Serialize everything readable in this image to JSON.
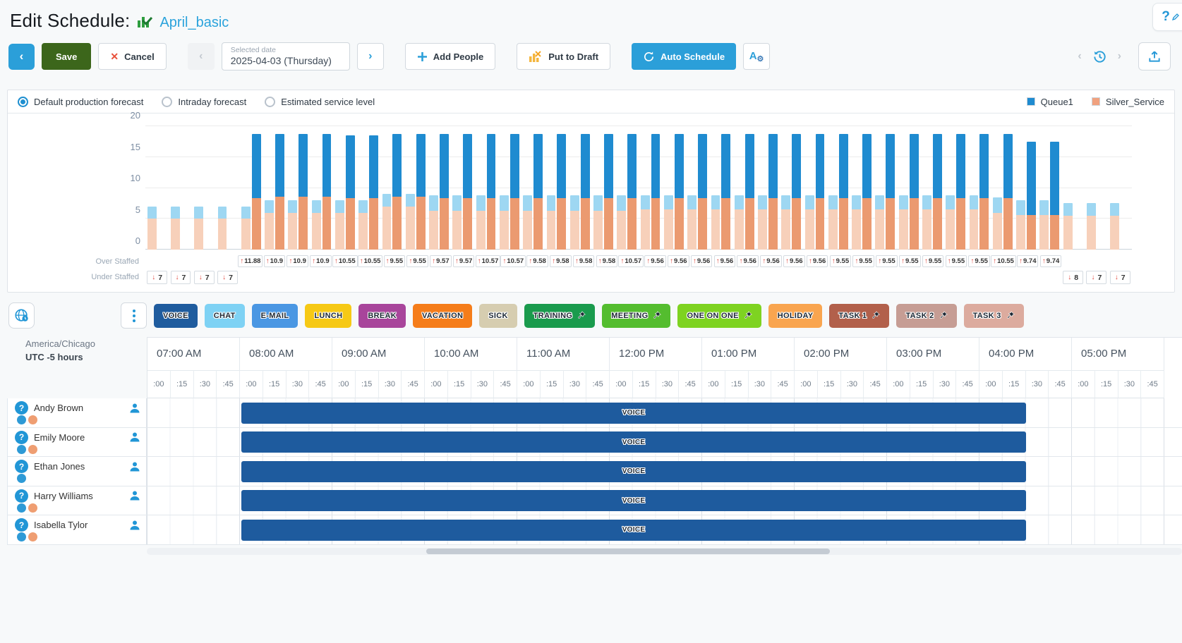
{
  "title": {
    "label": "Edit Schedule:",
    "schedule_name": "April_basic"
  },
  "help": {
    "icon_label": "?"
  },
  "toolbar": {
    "save_label": "Save",
    "cancel_label": "Cancel",
    "selected_date_label": "Selected date",
    "selected_date_value": "2025-04-03 (Thursday)",
    "add_people_label": "Add People",
    "put_to_draft_label": "Put to Draft",
    "auto_schedule_label": "Auto Schedule"
  },
  "chart": {
    "radios": [
      {
        "label": "Default production forecast",
        "selected": true
      },
      {
        "label": "Intraday forecast",
        "selected": false
      },
      {
        "label": "Estimated service level",
        "selected": false
      }
    ],
    "legend": [
      {
        "label": "Queue1",
        "color": "#1f8bd0"
      },
      {
        "label": "Silver_Service",
        "color": "#f0a17f"
      }
    ],
    "over_staffed_label": "Over Staffed",
    "under_staffed_label": "Under Staffed"
  },
  "chart_data": {
    "type": "bar",
    "title": "Default production forecast",
    "ylim": [
      0,
      20
    ],
    "yticks": [
      0,
      5,
      10,
      15,
      20
    ],
    "grid": "horizontal",
    "legend_position": "top-right",
    "series_names": [
      "Queue1",
      "Silver_Service"
    ],
    "interval_fields": [
      "light_salmon",
      "light_total",
      "dark_salmon",
      "dark_total",
      "over_staffed",
      "under_staffed"
    ],
    "intervals": [
      [
        5,
        7,
        null,
        null,
        null,
        7
      ],
      [
        5,
        7,
        null,
        null,
        null,
        7
      ],
      [
        5,
        7,
        null,
        null,
        null,
        7
      ],
      [
        5,
        7,
        null,
        null,
        null,
        7
      ],
      [
        5,
        7,
        8.3,
        18.8,
        11.88,
        null
      ],
      [
        6,
        8,
        8.6,
        18.8,
        10.9,
        null
      ],
      [
        6,
        8,
        8.6,
        18.8,
        10.9,
        null
      ],
      [
        6,
        8,
        8.6,
        18.8,
        10.9,
        null
      ],
      [
        6,
        8,
        8.3,
        18.5,
        10.55,
        null
      ],
      [
        6,
        8,
        8.3,
        18.5,
        10.55,
        null
      ],
      [
        7,
        9,
        8.6,
        18.8,
        9.55,
        null
      ],
      [
        7,
        9,
        8.6,
        18.8,
        9.55,
        null
      ],
      [
        6.3,
        8.8,
        8.3,
        18.8,
        9.57,
        null
      ],
      [
        6.3,
        8.8,
        8.3,
        18.8,
        9.57,
        null
      ],
      [
        6.3,
        8.8,
        8.3,
        18.8,
        10.57,
        null
      ],
      [
        6.3,
        8.8,
        8.3,
        18.8,
        10.57,
        null
      ],
      [
        6.3,
        8.8,
        8.3,
        18.8,
        9.58,
        null
      ],
      [
        6.3,
        8.8,
        8.3,
        18.8,
        9.58,
        null
      ],
      [
        6.3,
        8.8,
        8.3,
        18.8,
        9.58,
        null
      ],
      [
        6.3,
        8.8,
        8.3,
        18.8,
        9.58,
        null
      ],
      [
        6.3,
        8.8,
        8.3,
        18.8,
        10.57,
        null
      ],
      [
        6.5,
        8.8,
        8.3,
        18.8,
        9.56,
        null
      ],
      [
        6.5,
        8.8,
        8.3,
        18.8,
        9.56,
        null
      ],
      [
        6.5,
        8.8,
        8.3,
        18.8,
        9.56,
        null
      ],
      [
        6.5,
        8.8,
        8.3,
        18.8,
        9.56,
        null
      ],
      [
        6.5,
        8.8,
        8.3,
        18.8,
        9.56,
        null
      ],
      [
        6.5,
        8.8,
        8.3,
        18.8,
        9.56,
        null
      ],
      [
        6.5,
        8.8,
        8.3,
        18.8,
        9.56,
        null
      ],
      [
        6.5,
        8.8,
        8.3,
        18.8,
        9.56,
        null
      ],
      [
        6.5,
        8.8,
        8.3,
        18.8,
        9.55,
        null
      ],
      [
        6.5,
        8.8,
        8.3,
        18.8,
        9.55,
        null
      ],
      [
        6.5,
        8.8,
        8.3,
        18.8,
        9.55,
        null
      ],
      [
        6.5,
        8.8,
        8.3,
        18.8,
        9.55,
        null
      ],
      [
        6.5,
        8.8,
        8.3,
        18.8,
        9.55,
        null
      ],
      [
        6.5,
        8.8,
        8.3,
        18.8,
        9.55,
        null
      ],
      [
        6.5,
        8.8,
        8.3,
        18.8,
        9.55,
        null
      ],
      [
        6,
        8.5,
        8.3,
        18.8,
        10.55,
        null
      ],
      [
        5.6,
        8,
        5.6,
        17.5,
        9.74,
        null
      ],
      [
        5.6,
        8,
        5.6,
        17.5,
        9.74,
        null
      ],
      [
        5.5,
        7.5,
        null,
        null,
        null,
        8
      ],
      [
        5.5,
        7.5,
        null,
        null,
        null,
        7
      ],
      [
        5.5,
        7.5,
        null,
        null,
        null,
        7
      ]
    ],
    "colors": {
      "queue_dark": "#1f8bd0",
      "queue_light": "#9ed7f2",
      "silver_dark": "#eb9a70",
      "silver_light": "#f7d0ba"
    }
  },
  "palette": {
    "activities": [
      {
        "label": "VOICE",
        "color": "#1f5c9e",
        "pinned": false
      },
      {
        "label": "CHAT",
        "color": "#7ed2f4",
        "pinned": false
      },
      {
        "label": "E-MAIL",
        "color": "#4a97e3",
        "pinned": false
      },
      {
        "label": "LUNCH",
        "color": "#f6c915",
        "pinned": false
      },
      {
        "label": "BREAK",
        "color": "#a8459b",
        "pinned": false
      },
      {
        "label": "VACATION",
        "color": "#f57d1a",
        "pinned": false
      },
      {
        "label": "SICK",
        "color": "#d6cdb0",
        "pinned": false
      },
      {
        "label": "TRAINING",
        "color": "#1a9b4d",
        "pinned": true
      },
      {
        "label": "MEETING",
        "color": "#54bd2f",
        "pinned": true
      },
      {
        "label": "ONE ON ONE",
        "color": "#7ed321",
        "pinned": true
      },
      {
        "label": "HOLIDAY",
        "color": "#f9a54f",
        "pinned": false
      },
      {
        "label": "TASK 1",
        "color": "#b2604b",
        "pinned": true
      },
      {
        "label": "TASK 2",
        "color": "#c69d94",
        "pinned": true
      },
      {
        "label": "TASK 3",
        "color": "#dcab9e",
        "pinned": true
      }
    ]
  },
  "timezone": {
    "region": "America/Chicago",
    "offset": "UTC -5 hours"
  },
  "timeline": {
    "hours": [
      "07:00 AM",
      "08:00 AM",
      "09:00 AM",
      "10:00 AM",
      "11:00 AM",
      "12:00 PM",
      "01:00 PM",
      "02:00 PM",
      "03:00 PM",
      "04:00 PM",
      "05:00 PM"
    ],
    "quarters": [
      ":00",
      ":15",
      ":30",
      ":45"
    ]
  },
  "employees": [
    {
      "name": "Andy Brown",
      "dots": [
        "blue",
        "orange"
      ]
    },
    {
      "name": "Emily Moore",
      "dots": [
        "blue",
        "orange"
      ]
    },
    {
      "name": "Ethan Jones",
      "dots": [
        "blue"
      ]
    },
    {
      "name": "Harry Williams",
      "dots": [
        "blue",
        "orange"
      ]
    },
    {
      "name": "Isabella Tylor",
      "dots": [
        "blue",
        "orange"
      ]
    }
  ],
  "schedule_bar": {
    "label": "VOICE",
    "color": "#1e5b9e",
    "start": "08:00 AM",
    "end": "04:30 PM"
  }
}
